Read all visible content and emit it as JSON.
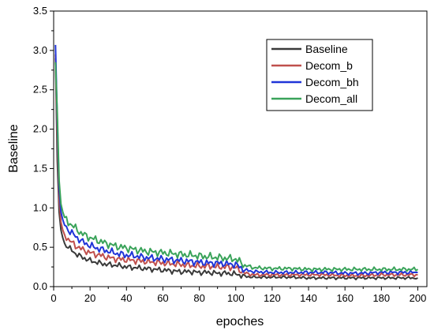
{
  "chart_data": {
    "type": "line",
    "title": "",
    "xlabel": "epoches",
    "ylabel": "Baseline",
    "xlim": [
      0,
      205
    ],
    "ylim": [
      0.0,
      3.5
    ],
    "xticks": [
      0,
      20,
      40,
      60,
      80,
      100,
      120,
      140,
      160,
      180,
      200
    ],
    "yticks": [
      "0.0",
      "0.5",
      "1.0",
      "1.5",
      "2.0",
      "2.5",
      "3.0",
      "3.5"
    ],
    "grid": false,
    "legend_position": "top-right",
    "series": [
      {
        "name": "Baseline",
        "color": "#3a3a3a",
        "x": [
          1,
          2,
          3,
          4,
          5,
          6,
          8,
          10,
          12,
          15,
          20,
          25,
          30,
          35,
          40,
          45,
          50,
          55,
          60,
          65,
          70,
          75,
          80,
          85,
          90,
          95,
          100,
          105,
          110,
          120,
          130,
          140,
          150,
          160,
          170,
          180,
          190,
          200
        ],
        "y": [
          2.9,
          1.6,
          0.95,
          0.72,
          0.62,
          0.55,
          0.5,
          0.46,
          0.42,
          0.38,
          0.33,
          0.3,
          0.28,
          0.27,
          0.25,
          0.24,
          0.23,
          0.22,
          0.21,
          0.2,
          0.19,
          0.19,
          0.18,
          0.18,
          0.17,
          0.17,
          0.16,
          0.13,
          0.12,
          0.12,
          0.12,
          0.11,
          0.11,
          0.11,
          0.11,
          0.11,
          0.11,
          0.11
        ]
      },
      {
        "name": "Decom_b",
        "color": "#c0504d",
        "x": [
          1,
          2,
          3,
          4,
          5,
          6,
          8,
          10,
          12,
          15,
          20,
          25,
          30,
          35,
          40,
          45,
          50,
          55,
          60,
          65,
          70,
          75,
          80,
          85,
          90,
          95,
          100,
          105,
          110,
          120,
          130,
          140,
          150,
          160,
          170,
          180,
          190,
          200
        ],
        "y": [
          2.95,
          1.9,
          1.1,
          0.82,
          0.72,
          0.66,
          0.6,
          0.56,
          0.52,
          0.48,
          0.43,
          0.4,
          0.37,
          0.35,
          0.34,
          0.33,
          0.32,
          0.31,
          0.3,
          0.29,
          0.28,
          0.27,
          0.26,
          0.26,
          0.25,
          0.25,
          0.24,
          0.17,
          0.15,
          0.15,
          0.15,
          0.15,
          0.15,
          0.14,
          0.14,
          0.15,
          0.15,
          0.15
        ]
      },
      {
        "name": "Decom_bh",
        "color": "#2035d8",
        "x": [
          1,
          2,
          3,
          4,
          5,
          6,
          8,
          10,
          12,
          15,
          20,
          25,
          30,
          35,
          40,
          45,
          50,
          55,
          60,
          65,
          70,
          75,
          80,
          85,
          90,
          95,
          100,
          105,
          110,
          120,
          130,
          140,
          150,
          160,
          170,
          180,
          190,
          200
        ],
        "y": [
          3.07,
          2.1,
          1.25,
          0.95,
          0.85,
          0.78,
          0.72,
          0.68,
          0.64,
          0.58,
          0.52,
          0.48,
          0.45,
          0.42,
          0.4,
          0.39,
          0.37,
          0.36,
          0.35,
          0.34,
          0.33,
          0.32,
          0.31,
          0.3,
          0.3,
          0.29,
          0.28,
          0.21,
          0.19,
          0.18,
          0.18,
          0.18,
          0.18,
          0.17,
          0.17,
          0.18,
          0.18,
          0.18
        ]
      },
      {
        "name": "Decom_all",
        "color": "#3aa35a",
        "x": [
          1,
          2,
          3,
          4,
          5,
          6,
          8,
          10,
          12,
          15,
          20,
          25,
          30,
          35,
          40,
          45,
          50,
          55,
          60,
          65,
          70,
          75,
          80,
          85,
          90,
          95,
          100,
          105,
          110,
          120,
          130,
          140,
          150,
          160,
          170,
          180,
          190,
          200
        ],
        "y": [
          2.85,
          2.2,
          1.35,
          1.05,
          0.95,
          0.88,
          0.82,
          0.78,
          0.74,
          0.68,
          0.62,
          0.58,
          0.54,
          0.51,
          0.49,
          0.47,
          0.45,
          0.44,
          0.43,
          0.42,
          0.41,
          0.4,
          0.39,
          0.38,
          0.37,
          0.36,
          0.35,
          0.27,
          0.24,
          0.23,
          0.23,
          0.22,
          0.22,
          0.22,
          0.22,
          0.22,
          0.22,
          0.22
        ]
      }
    ]
  }
}
